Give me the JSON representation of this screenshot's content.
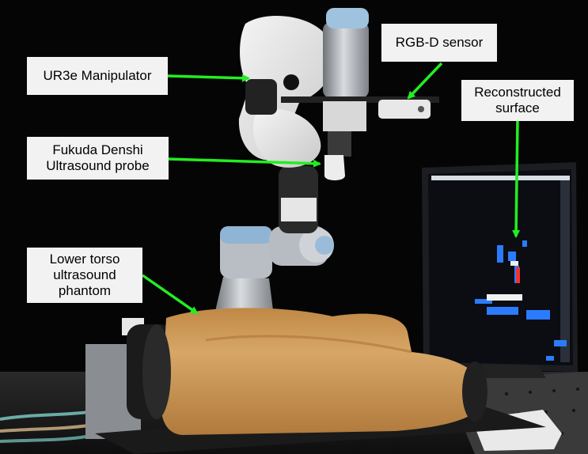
{
  "annotations": {
    "ur3e": {
      "lines": [
        "UR3e Manipulator"
      ]
    },
    "rgbd": {
      "lines": [
        "RGB-D sensor"
      ]
    },
    "reconstructed": {
      "lines": [
        "Reconstructed",
        "surface"
      ]
    },
    "probe": {
      "lines": [
        "Fukuda Denshi",
        "Ultrasound probe"
      ]
    },
    "phantom": {
      "lines": [
        "Lower torso",
        "ultrasound",
        "phantom"
      ]
    }
  },
  "colors": {
    "arrow": "#22ee22",
    "label_bg": "#f2f2f2",
    "phantom_skin": "#d3a062",
    "background": "#000000"
  }
}
